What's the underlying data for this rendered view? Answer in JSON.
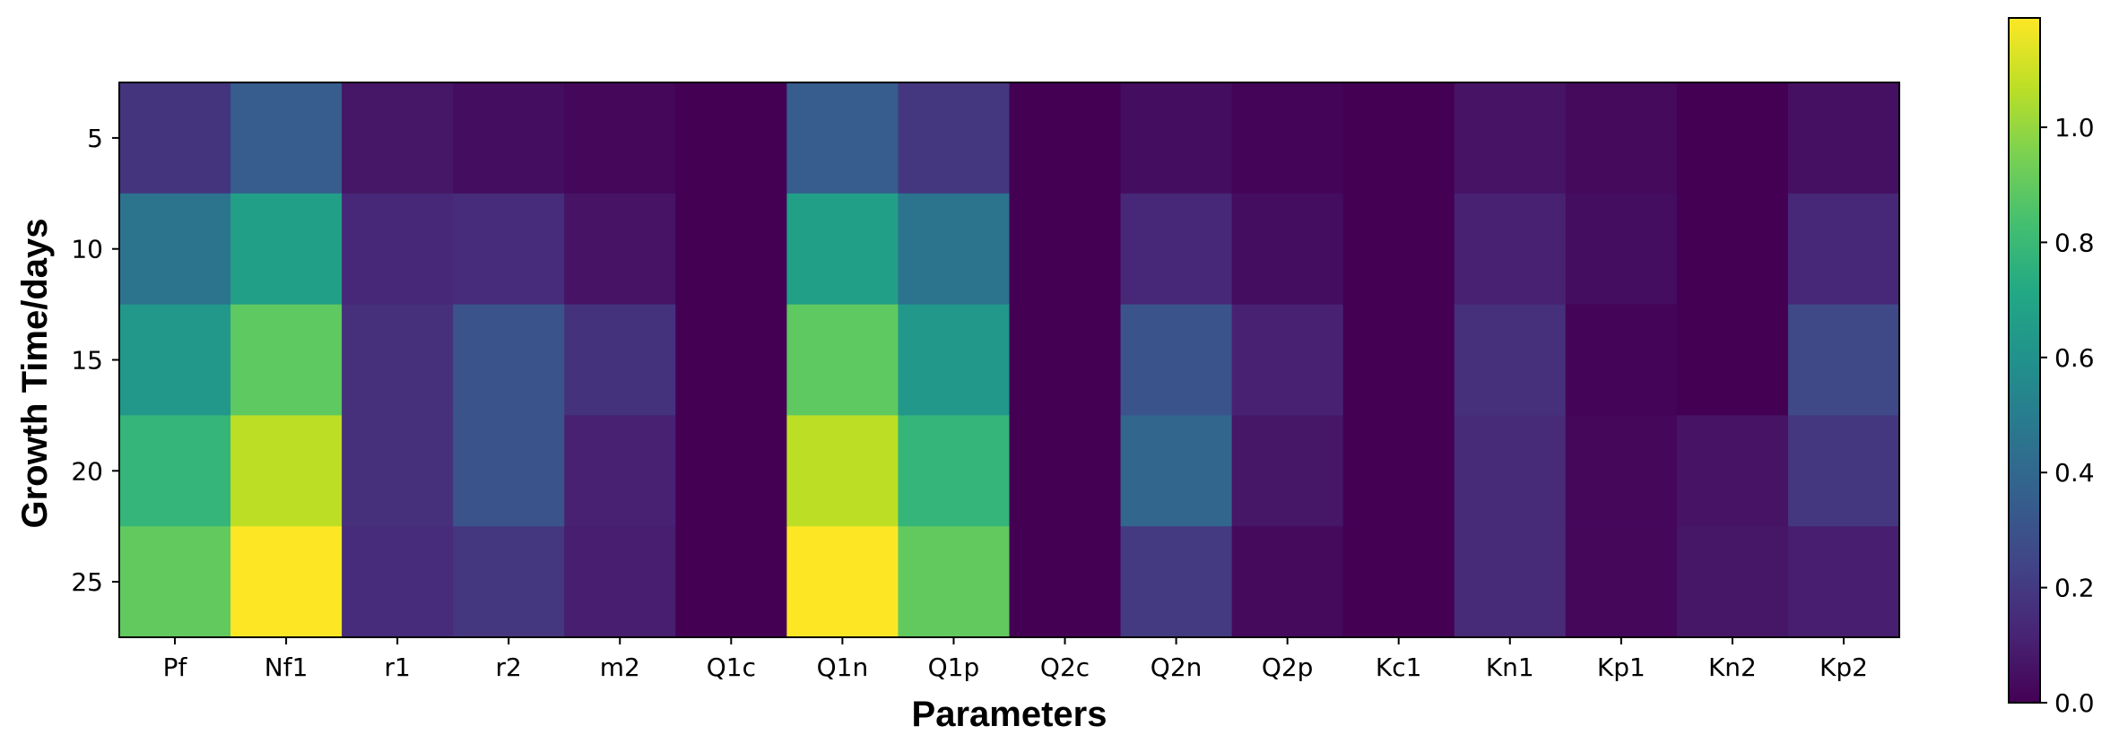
{
  "chart_data": {
    "type": "heatmap",
    "title": "",
    "xlabel": "Parameters",
    "ylabel": "Growth Time/days",
    "x_categories": [
      "Pf",
      "Nf1",
      "r1",
      "r2",
      "m2",
      "Q1c",
      "Q1n",
      "Q1p",
      "Q2c",
      "Q2n",
      "Q2p",
      "Kc1",
      "Kn1",
      "Kp1",
      "Kn2",
      "Kp2"
    ],
    "y_categories": [
      "5",
      "10",
      "15",
      "20",
      "25"
    ],
    "values": [
      [
        0.18,
        0.35,
        0.07,
        0.04,
        0.02,
        0.0,
        0.35,
        0.19,
        0.0,
        0.04,
        0.01,
        0.0,
        0.06,
        0.03,
        0.0,
        0.05
      ],
      [
        0.45,
        0.67,
        0.13,
        0.15,
        0.06,
        0.0,
        0.67,
        0.45,
        0.0,
        0.13,
        0.04,
        0.0,
        0.11,
        0.04,
        0.0,
        0.13
      ],
      [
        0.63,
        0.89,
        0.16,
        0.31,
        0.17,
        0.0,
        0.89,
        0.63,
        0.0,
        0.31,
        0.11,
        0.0,
        0.16,
        0.01,
        0.0,
        0.26
      ],
      [
        0.78,
        1.07,
        0.16,
        0.31,
        0.11,
        0.0,
        1.07,
        0.78,
        0.0,
        0.39,
        0.07,
        0.0,
        0.14,
        0.02,
        0.06,
        0.19
      ],
      [
        0.9,
        1.19,
        0.15,
        0.19,
        0.1,
        0.0,
        1.19,
        0.9,
        0.0,
        0.2,
        0.03,
        0.0,
        0.14,
        0.02,
        0.07,
        0.1
      ]
    ],
    "colorbar": {
      "colormap": "viridis",
      "min": 0.0,
      "max": 1.19,
      "ticks": [
        0.0,
        0.2,
        0.4,
        0.6,
        0.8,
        1.0
      ],
      "tick_labels": [
        "0.0",
        "0.2",
        "0.4",
        "0.6",
        "0.8",
        "1.0"
      ]
    }
  }
}
